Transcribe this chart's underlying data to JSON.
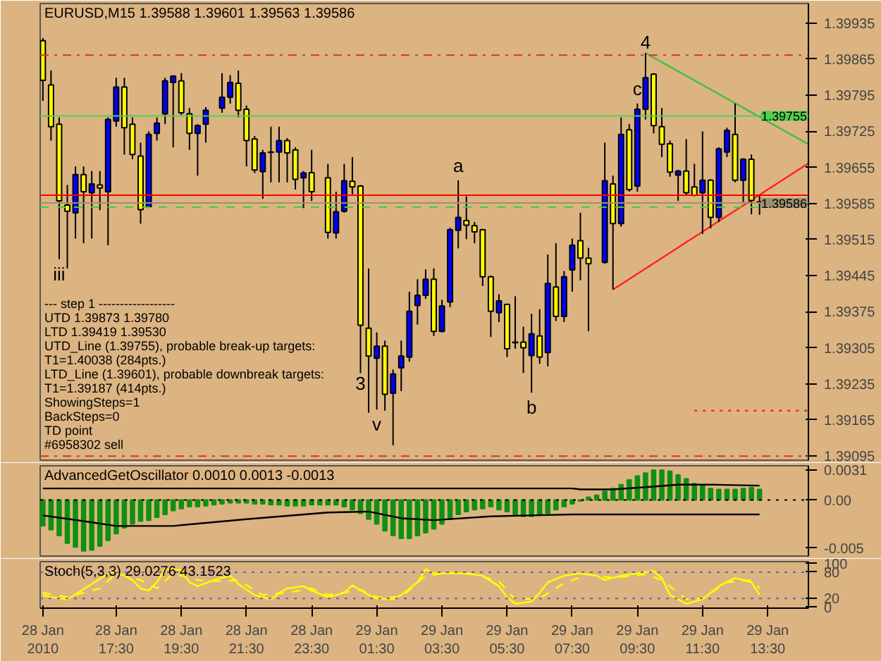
{
  "chart_data": [
    {
      "type": "candlestick",
      "title": "EURUSD,M15  1.39588 1.39601 1.39563 1.39586",
      "annotations": [
        "---   step 1   ------------------",
        "UTD 1.39873  1.39780",
        "LTD  1.39419  1.39530",
        "UTD_Line (1.39755), probable break-up targets:",
        "T1=1.40038 (284pts.)",
        "LTD_Line (1.39601), probable downbreak targets:",
        "T1=1.39187 (414pts.)",
        "ShowingSteps=1",
        "BackSteps=0",
        "TD point",
        "#6958302 sell",
        {
          "text": "iii",
          "x": "2010-01-28T15:45",
          "y": 1.39477
        },
        {
          "text": "3",
          "x": "2010-01-29T01:00",
          "y": 1.39256
        },
        {
          "text": "v",
          "x": "2010-01-29T01:30",
          "y": 1.39185
        },
        {
          "text": "a",
          "x": "2010-01-29T04:00",
          "y": 1.3963
        },
        {
          "text": "b",
          "x": "2010-01-29T06:15",
          "y": 1.39218
        },
        {
          "text": "c",
          "x": "2010-01-29T09:30",
          "y": 1.39779
        },
        {
          "text": "4",
          "x": "2010-01-29T09:45",
          "y": 1.39877
        }
      ],
      "x": [
        "2010-01-28T15:15",
        "2010-01-28T15:30",
        "2010-01-28T15:45",
        "2010-01-28T16:00",
        "2010-01-28T16:15",
        "2010-01-28T16:30",
        "2010-01-28T16:45",
        "2010-01-28T17:00",
        "2010-01-28T17:15",
        "2010-01-28T17:30",
        "2010-01-28T17:45",
        "2010-01-28T18:00",
        "2010-01-28T18:15",
        "2010-01-28T18:30",
        "2010-01-28T18:45",
        "2010-01-28T19:00",
        "2010-01-28T19:15",
        "2010-01-28T19:30",
        "2010-01-28T19:45",
        "2010-01-28T20:00",
        "2010-01-28T20:15",
        "2010-01-28T20:45",
        "2010-01-28T21:00",
        "2010-01-28T21:15",
        "2010-01-28T21:30",
        "2010-01-28T21:45",
        "2010-01-28T22:00",
        "2010-01-28T22:15",
        "2010-01-28T22:30",
        "2010-01-28T22:45",
        "2010-01-28T23:00",
        "2010-01-28T23:15",
        "2010-01-28T23:30",
        "2010-01-29T00:00",
        "2010-01-29T00:15",
        "2010-01-29T00:30",
        "2010-01-29T00:45",
        "2010-01-29T01:00",
        "2010-01-29T01:15",
        "2010-01-29T01:30",
        "2010-01-29T01:45",
        "2010-01-29T02:00",
        "2010-01-29T02:15",
        "2010-01-29T02:30",
        "2010-01-29T02:45",
        "2010-01-29T03:00",
        "2010-01-29T03:15",
        "2010-01-29T03:30",
        "2010-01-29T03:45",
        "2010-01-29T04:00",
        "2010-01-29T04:15",
        "2010-01-29T04:30",
        "2010-01-29T04:45",
        "2010-01-29T05:00",
        "2010-01-29T05:15",
        "2010-01-29T05:30",
        "2010-01-29T05:45",
        "2010-01-29T06:00",
        "2010-01-29T06:15",
        "2010-01-29T06:30",
        "2010-01-29T06:45",
        "2010-01-29T07:00",
        "2010-01-29T07:15",
        "2010-01-29T07:30",
        "2010-01-29T07:45",
        "2010-01-29T08:00",
        "2010-01-29T08:30",
        "2010-01-29T08:45",
        "2010-01-29T09:00",
        "2010-01-29T09:15",
        "2010-01-29T09:30",
        "2010-01-29T09:45",
        "2010-01-29T10:00",
        "2010-01-29T10:15",
        "2010-01-29T10:30",
        "2010-01-29T10:45",
        "2010-01-29T11:00",
        "2010-01-29T11:15",
        "2010-01-29T11:30",
        "2010-01-29T11:45",
        "2010-01-29T12:00",
        "2010-01-29T12:15",
        "2010-01-29T12:30",
        "2010-01-29T12:45",
        "2010-01-29T13:00",
        "2010-01-29T13:15"
      ],
      "ohlc": [
        [
          1.39901,
          1.39906,
          1.39784,
          1.39824
        ],
        [
          1.39815,
          1.39843,
          1.39707,
          1.39734
        ],
        [
          1.39739,
          1.39752,
          1.39477,
          1.3959
        ],
        [
          1.39582,
          1.39621,
          1.39459,
          1.3957
        ],
        [
          1.39567,
          1.39657,
          1.39517,
          1.39641
        ],
        [
          1.39641,
          1.39657,
          1.39508,
          1.39608
        ],
        [
          1.39606,
          1.39648,
          1.39517,
          1.39623
        ],
        [
          1.39621,
          1.39648,
          1.39572,
          1.39615
        ],
        [
          1.39608,
          1.39752,
          1.39504,
          1.39748
        ],
        [
          1.39745,
          1.39829,
          1.39734,
          1.39811
        ],
        [
          1.39811,
          1.39829,
          1.3968,
          1.39732
        ],
        [
          1.39739,
          1.39752,
          1.39671,
          1.3968
        ],
        [
          1.39677,
          1.39703,
          1.39546,
          1.39573
        ],
        [
          1.39579,
          1.39725,
          1.39576,
          1.39719
        ],
        [
          1.39721,
          1.39752,
          1.39707,
          1.39741
        ],
        [
          1.39759,
          1.39829,
          1.39739,
          1.39823
        ],
        [
          1.3982,
          1.39834,
          1.39694,
          1.39832
        ],
        [
          1.39823,
          1.39838,
          1.39757,
          1.39761
        ],
        [
          1.39759,
          1.3977,
          1.39689,
          1.39721
        ],
        [
          1.39721,
          1.39739,
          1.39639,
          1.39736
        ],
        [
          1.39739,
          1.39772,
          1.39703,
          1.39766
        ],
        [
          1.3977,
          1.39838,
          1.39761,
          1.39791
        ],
        [
          1.39791,
          1.39834,
          1.39779,
          1.3982
        ],
        [
          1.39818,
          1.39843,
          1.39752,
          1.39766
        ],
        [
          1.39768,
          1.39775,
          1.39657,
          1.39707
        ],
        [
          1.3971,
          1.39716,
          1.39644,
          1.3965
        ],
        [
          1.39647,
          1.39689,
          1.39594,
          1.39683
        ],
        [
          1.39685,
          1.39734,
          1.39626,
          1.39684
        ],
        [
          1.39685,
          1.39734,
          1.39626,
          1.39707
        ],
        [
          1.39707,
          1.39712,
          1.39626,
          1.39683
        ],
        [
          1.39689,
          1.39694,
          1.39612,
          1.39632
        ],
        [
          1.39635,
          1.39648,
          1.39576,
          1.39644
        ],
        [
          1.39645,
          1.39689,
          1.3959,
          1.39608
        ],
        [
          1.39635,
          1.39662,
          1.39517,
          1.39529
        ],
        [
          1.39528,
          1.39608,
          1.39517,
          1.39569
        ],
        [
          1.3957,
          1.39662,
          1.39567,
          1.39629
        ],
        [
          1.39628,
          1.39675,
          1.39603,
          1.39617
        ],
        [
          1.39619,
          1.39621,
          1.39256,
          1.39349
        ],
        [
          1.39343,
          1.39459,
          1.39179,
          1.39289
        ],
        [
          1.39285,
          1.39335,
          1.39185,
          1.39308
        ],
        [
          1.39308,
          1.39319,
          1.39183,
          1.39215
        ],
        [
          1.39217,
          1.39263,
          1.39116,
          1.39254
        ],
        [
          1.39266,
          1.39319,
          1.39221,
          1.39289
        ],
        [
          1.39287,
          1.39414,
          1.39278,
          1.39376
        ],
        [
          1.39387,
          1.39438,
          1.3935,
          1.39407
        ],
        [
          1.39407,
          1.39457,
          1.394,
          1.39438
        ],
        [
          1.39438,
          1.39459,
          1.39328,
          1.39337
        ],
        [
          1.39337,
          1.39398,
          1.39335,
          1.39386
        ],
        [
          1.39394,
          1.39538,
          1.39384,
          1.39534
        ],
        [
          1.39533,
          1.3963,
          1.39498,
          1.39558
        ],
        [
          1.39552,
          1.39599,
          1.39516,
          1.39543
        ],
        [
          1.39542,
          1.39549,
          1.39508,
          1.3953
        ],
        [
          1.39534,
          1.39536,
          1.39425,
          1.39443
        ],
        [
          1.39443,
          1.39445,
          1.39326,
          1.39376
        ],
        [
          1.39373,
          1.39409,
          1.39355,
          1.39396
        ],
        [
          1.39389,
          1.39391,
          1.39287,
          1.39303
        ],
        [
          1.39316,
          1.39405,
          1.39303,
          1.39315
        ],
        [
          1.39316,
          1.39346,
          1.39256,
          1.39305
        ],
        [
          1.3929,
          1.39371,
          1.39218,
          1.39332
        ],
        [
          1.39328,
          1.3938,
          1.39274,
          1.39287
        ],
        [
          1.39296,
          1.39486,
          1.39269,
          1.3943
        ],
        [
          1.39423,
          1.39508,
          1.39357,
          1.39366
        ],
        [
          1.39366,
          1.39454,
          1.39355,
          1.39443
        ],
        [
          1.39456,
          1.39517,
          1.39414,
          1.39504
        ],
        [
          1.39513,
          1.39567,
          1.39436,
          1.39479
        ],
        [
          1.39479,
          1.39499,
          1.39337,
          1.39468
        ],
        [
          1.39471,
          1.39703,
          1.39468,
          1.39629
        ],
        [
          1.39623,
          1.39639,
          1.39418,
          1.39546
        ],
        [
          1.39546,
          1.39752,
          1.3954,
          1.39719
        ],
        [
          1.39728,
          1.39739,
          1.39608,
          1.39612
        ],
        [
          1.39619,
          1.39779,
          1.39608,
          1.39768
        ],
        [
          1.39768,
          1.39877,
          1.39748,
          1.39829
        ],
        [
          1.39836,
          1.39838,
          1.39721,
          1.39736
        ],
        [
          1.39734,
          1.3977,
          1.39675,
          1.397
        ],
        [
          1.39701,
          1.39707,
          1.39637,
          1.39646
        ],
        [
          1.3964,
          1.3965,
          1.3959,
          1.39648
        ],
        [
          1.39648,
          1.3971,
          1.39601,
          1.39606
        ],
        [
          1.39617,
          1.39662,
          1.39599,
          1.39601
        ],
        [
          1.39606,
          1.39725,
          1.39526,
          1.3963
        ],
        [
          1.3963,
          1.39632,
          1.39537,
          1.39558
        ],
        [
          1.39558,
          1.39694,
          1.39549,
          1.39691
        ],
        [
          1.39685,
          1.39732,
          1.39675,
          1.39727
        ],
        [
          1.39719,
          1.39779,
          1.39626,
          1.3963
        ],
        [
          1.3963,
          1.39673,
          1.39588,
          1.39671
        ],
        [
          1.39671,
          1.3968,
          1.39564,
          1.39591
        ],
        [
          1.39588,
          1.39601,
          1.39563,
          1.39586
        ]
      ],
      "colors": [
        "#ffff00",
        "#ffff00",
        "#ffff00",
        "#ffff00",
        "#0000ff",
        "#ffff00",
        "#0000ff",
        "#ffff00",
        "#0000ff",
        "#0000ff",
        "#ffff00",
        "#ffff00",
        "#ffff00",
        "#0000ff",
        "#0000ff",
        "#0000ff",
        "#0000ff",
        "#ffff00",
        "#ffff00",
        "#0000ff",
        "#0000ff",
        "#0000ff",
        "#0000ff",
        "#ffff00",
        "#ffff00",
        "#ffff00",
        "#0000ff",
        "#ffff00",
        "#0000ff",
        "#ffff00",
        "#ffff00",
        "#0000ff",
        "#ffff00",
        "#ffff00",
        "#0000ff",
        "#0000ff",
        "#ffff00",
        "#ffff00",
        "#ffff00",
        "#0000ff",
        "#ffff00",
        "#0000ff",
        "#0000ff",
        "#0000ff",
        "#0000ff",
        "#0000ff",
        "#ffff00",
        "#0000ff",
        "#0000ff",
        "#0000ff",
        "#ffff00",
        "#ffff00",
        "#ffff00",
        "#ffff00",
        "#0000ff",
        "#ffff00",
        "#ffff00",
        "#ffff00",
        "#0000ff",
        "#ffff00",
        "#0000ff",
        "#ffff00",
        "#0000ff",
        "#0000ff",
        "#ffff00",
        "#ffff00",
        "#0000ff",
        "#ffff00",
        "#0000ff",
        "#ffff00",
        "#0000ff",
        "#0000ff",
        "#ffff00",
        "#ffff00",
        "#ffff00",
        "#0000ff",
        "#ffff00",
        "#ffff00",
        "#0000ff",
        "#ffff00",
        "#0000ff",
        "#0000ff",
        "#ffff00",
        "#0000ff",
        "#ffff00",
        "#ffff00"
      ],
      "series": [
        {
          "type": "line",
          "color": "#40c040",
          "line_style": "solid",
          "x": [
            "2010-01-29T09:45",
            "2010-01-29T14:45"
          ],
          "values": [
            1.39877,
            1.397
          ]
        },
        {
          "type": "line",
          "color": "#ff2020",
          "line_style": "solid",
          "x": [
            "2010-01-29T08:45",
            "2010-01-29T14:45"
          ],
          "values": [
            1.39418,
            1.39663
          ]
        },
        {
          "type": "line",
          "color": "#ff2020",
          "line_style": "dotted",
          "x": [
            "2010-01-29T11:15",
            "2010-01-29T14:45"
          ],
          "values": [
            1.39183,
            1.39183
          ]
        }
      ],
      "ref_lines": [
        {
          "axis": "y",
          "value": 1.39873,
          "label": null,
          "color": "#e03020",
          "line_style": "dashdot"
        },
        {
          "axis": "y",
          "value": 1.39095,
          "label": null,
          "color": "#e03020",
          "line_style": "dashdot"
        },
        {
          "axis": "y",
          "value": 1.39755,
          "label": "1.39755",
          "color": "#50d050",
          "line_style": "solid"
        },
        {
          "axis": "y",
          "value": 1.39586,
          "label": "1.39586",
          "color": "#a09070",
          "line_style": "solid"
        },
        {
          "axis": "y",
          "value": 1.39601,
          "label": null,
          "color": "#ff0000",
          "line_style": "solid"
        },
        {
          "axis": "y",
          "value": 1.39578,
          "label": null,
          "color": "#40d040",
          "line_style": "dashed"
        }
      ],
      "xlim": [
        "2010-01-28T15:10",
        "2010-01-29T14:45"
      ],
      "ylim": [
        1.39087,
        1.39973
      ],
      "yticks": [
        1.39935,
        1.39865,
        1.39795,
        1.39725,
        1.39655,
        1.39585,
        1.39515,
        1.39445,
        1.39375,
        1.39305,
        1.39235,
        1.39165,
        1.39095
      ],
      "tick_labels": "y"
    },
    {
      "type": "bar",
      "title": "AdvancedGetOscillator 0.0010 0.0013 -0.0013",
      "x": [
        "2010-01-28T15:15",
        "2010-01-28T15:30",
        "2010-01-28T15:45",
        "2010-01-28T16:00",
        "2010-01-28T16:15",
        "2010-01-28T16:30",
        "2010-01-28T16:45",
        "2010-01-28T17:00",
        "2010-01-28T17:15",
        "2010-01-28T17:30",
        "2010-01-28T17:45",
        "2010-01-28T18:00",
        "2010-01-28T18:15",
        "2010-01-28T18:30",
        "2010-01-28T18:45",
        "2010-01-28T19:00",
        "2010-01-28T19:15",
        "2010-01-28T19:30",
        "2010-01-28T19:45",
        "2010-01-28T20:00",
        "2010-01-28T20:15",
        "2010-01-28T20:30",
        "2010-01-28T20:45",
        "2010-01-28T21:00",
        "2010-01-28T21:15",
        "2010-01-28T21:30",
        "2010-01-28T21:45",
        "2010-01-28T22:00",
        "2010-01-28T22:15",
        "2010-01-28T22:30",
        "2010-01-28T22:45",
        "2010-01-28T23:00",
        "2010-01-28T23:15",
        "2010-01-28T23:30",
        "2010-01-28T23:45",
        "2010-01-29T00:00",
        "2010-01-29T00:15",
        "2010-01-29T00:30",
        "2010-01-29T00:45",
        "2010-01-29T01:00",
        "2010-01-29T01:15",
        "2010-01-29T01:30",
        "2010-01-29T01:45",
        "2010-01-29T02:00",
        "2010-01-29T02:15",
        "2010-01-29T02:30",
        "2010-01-29T02:45",
        "2010-01-29T03:00",
        "2010-01-29T03:15",
        "2010-01-29T03:30",
        "2010-01-29T03:45",
        "2010-01-29T04:00",
        "2010-01-29T04:15",
        "2010-01-29T04:30",
        "2010-01-29T04:45",
        "2010-01-29T05:00",
        "2010-01-29T05:15",
        "2010-01-29T05:30",
        "2010-01-29T05:45",
        "2010-01-29T06:00",
        "2010-01-29T06:15",
        "2010-01-29T06:30",
        "2010-01-29T06:45",
        "2010-01-29T07:00",
        "2010-01-29T07:15",
        "2010-01-29T07:30",
        "2010-01-29T07:45",
        "2010-01-29T08:00",
        "2010-01-29T08:15",
        "2010-01-29T08:30",
        "2010-01-29T08:45",
        "2010-01-29T09:00",
        "2010-01-29T09:15",
        "2010-01-29T09:30",
        "2010-01-29T09:45",
        "2010-01-29T10:00",
        "2010-01-29T10:15",
        "2010-01-29T10:30",
        "2010-01-29T10:45",
        "2010-01-29T11:00",
        "2010-01-29T11:15",
        "2010-01-29T11:30",
        "2010-01-29T11:45",
        "2010-01-29T12:00",
        "2010-01-29T12:15",
        "2010-01-29T12:30",
        "2010-01-29T12:45",
        "2010-01-29T13:00",
        "2010-01-29T13:15"
      ],
      "series": [
        {
          "type": "bar",
          "color": "#109010",
          "values": [
            -0.0027,
            -0.0031,
            -0.0037,
            -0.0045,
            -0.0049,
            -0.0053,
            -0.0052,
            -0.0048,
            -0.0042,
            -0.0035,
            -0.0029,
            -0.0025,
            -0.0022,
            -0.0021,
            -0.0018,
            -0.0015,
            -0.0011,
            -0.0009,
            -0.0007,
            -0.0007,
            -0.0006,
            -0.0005,
            -0.0004,
            -0.0003,
            -0.0003,
            -0.0003,
            -0.0004,
            -0.0004,
            -0.0005,
            -0.0005,
            -0.0006,
            -0.0006,
            -0.0006,
            -0.0005,
            -0.0005,
            -0.0005,
            -0.0005,
            -0.0007,
            -0.001,
            -0.0014,
            -0.002,
            -0.0025,
            -0.0032,
            -0.0037,
            -0.004,
            -0.004,
            -0.0037,
            -0.0034,
            -0.003,
            -0.0025,
            -0.002,
            -0.0015,
            -0.0012,
            -0.001,
            -0.0009,
            -0.0007,
            -0.001,
            -0.0012,
            -0.0015,
            -0.0017,
            -0.0017,
            -0.0016,
            -0.0014,
            -0.001,
            -0.0007,
            -0.0004,
            -0.0001,
            0.0003,
            0.0005,
            0.0009,
            0.0012,
            0.0016,
            0.0021,
            0.0025,
            0.0028,
            0.0031,
            0.0031,
            0.003,
            0.0026,
            0.0022,
            0.0017,
            0.0015,
            0.0012,
            0.0011,
            0.0011,
            0.0011,
            0.0012,
            0.0013,
            0.0011
          ]
        },
        {
          "type": "line",
          "color": "#000000",
          "x": [
            "2010-01-28T15:15",
            "2010-01-29T07:30",
            "2010-01-29T07:45",
            "2010-01-29T08:45",
            "2010-01-29T10:00",
            "2010-01-29T10:45",
            "2010-01-29T11:45",
            "2010-01-29T13:15"
          ],
          "values": [
            0.0012,
            0.0012,
            0.0011,
            0.0011,
            0.0014,
            0.0016,
            0.0016,
            0.0015
          ]
        },
        {
          "type": "line",
          "color": "#000000",
          "x": [
            "2010-01-28T15:15",
            "2010-01-28T16:30",
            "2010-01-28T17:30",
            "2010-01-28T19:15",
            "2010-01-28T21:30",
            "2010-01-29T00:00",
            "2010-01-29T01:15",
            "2010-01-29T02:15",
            "2010-01-29T03:15",
            "2010-01-29T05:00",
            "2010-01-29T06:15",
            "2010-01-29T07:30",
            "2010-01-29T13:15"
          ],
          "values": [
            -0.0016,
            -0.0022,
            -0.0027,
            -0.0027,
            -0.002,
            -0.0013,
            -0.0012,
            -0.0019,
            -0.0021,
            -0.0017,
            -0.0016,
            -0.0015,
            -0.0015
          ]
        }
      ],
      "ref_lines": [
        {
          "axis": "y",
          "value": 0,
          "label": null,
          "color": "#000000",
          "line_style": "dotted"
        }
      ],
      "xlim": [
        "2010-01-28T15:10",
        "2010-01-29T14:45"
      ],
      "ylim": [
        -0.00583,
        0.00356
      ],
      "yticks": [
        0.0031,
        {
          "value": 0,
          "label": "0.00"
        },
        -0.005
      ],
      "tick_labels": "y"
    },
    {
      "type": "line",
      "title": "Stoch(5,3,3) 29.0276 43.1523",
      "series": [
        {
          "color": "#ffff00",
          "line_style": "solid",
          "x": [
            "2010-01-28T15:15",
            "2010-01-28T15:30",
            "2010-01-28T16:00",
            "2010-01-28T16:45",
            "2010-01-28T17:15",
            "2010-01-28T17:30",
            "2010-01-28T18:00",
            "2010-01-28T18:15",
            "2010-01-28T18:30",
            "2010-01-28T18:45",
            "2010-01-28T19:00",
            "2010-01-28T19:30",
            "2010-01-28T19:45",
            "2010-01-28T20:00",
            "2010-01-28T20:30",
            "2010-01-28T21:00",
            "2010-01-28T21:15",
            "2010-01-28T21:45",
            "2010-01-28T22:15",
            "2010-01-28T22:30",
            "2010-01-28T22:45",
            "2010-01-28T23:15",
            "2010-01-28T23:30",
            "2010-01-29T00:00",
            "2010-01-29T00:15",
            "2010-01-29T00:30",
            "2010-01-29T00:45",
            "2010-01-29T01:15",
            "2010-01-29T01:30",
            "2010-01-29T02:00",
            "2010-01-29T02:15",
            "2010-01-29T02:45",
            "2010-01-29T03:00",
            "2010-01-29T03:15",
            "2010-01-29T03:45",
            "2010-01-29T04:15",
            "2010-01-29T04:45",
            "2010-01-29T05:15",
            "2010-01-29T05:30",
            "2010-01-29T05:45",
            "2010-01-29T06:15",
            "2010-01-29T06:30",
            "2010-01-29T06:45",
            "2010-01-29T07:15",
            "2010-01-29T07:45",
            "2010-01-29T08:15",
            "2010-01-29T08:30",
            "2010-01-29T09:00",
            "2010-01-29T09:30",
            "2010-01-29T10:00",
            "2010-01-29T10:15",
            "2010-01-29T10:30",
            "2010-01-29T11:00",
            "2010-01-29T11:30",
            "2010-01-29T12:00",
            "2010-01-29T12:30",
            "2010-01-29T13:00",
            "2010-01-29T13:15"
          ],
          "values": [
            28,
            23,
            18,
            53,
            77,
            82,
            62,
            43,
            38,
            57,
            87,
            85,
            57,
            48,
            62,
            72,
            53,
            28,
            18,
            33,
            43,
            48,
            38,
            23,
            28,
            33,
            50,
            28,
            20,
            18,
            28,
            57,
            87,
            77,
            77,
            77,
            72,
            48,
            23,
            8,
            13,
            33,
            57,
            72,
            77,
            72,
            62,
            72,
            77,
            82,
            67,
            28,
            8,
            18,
            48,
            67,
            57,
            28
          ]
        },
        {
          "color": "#ffff00",
          "line_style": "dashed",
          "x": [
            "2010-01-28T15:15",
            "2010-01-28T16:00",
            "2010-01-28T17:00",
            "2010-01-28T17:30",
            "2010-01-28T18:15",
            "2010-01-28T18:45",
            "2010-01-28T19:15",
            "2010-01-28T20:00",
            "2010-01-28T20:45",
            "2010-01-28T21:15",
            "2010-01-28T22:00",
            "2010-01-28T22:45",
            "2010-01-28T23:30",
            "2010-01-29T00:00",
            "2010-01-29T01:00",
            "2010-01-29T01:30",
            "2010-01-29T02:15",
            "2010-01-29T03:00",
            "2010-01-29T03:45",
            "2010-01-29T04:30",
            "2010-01-29T05:15",
            "2010-01-29T05:45",
            "2010-01-29T06:30",
            "2010-01-29T07:15",
            "2010-01-29T08:00",
            "2010-01-29T08:45",
            "2010-01-29T09:45",
            "2010-01-29T10:15",
            "2010-01-29T11:00",
            "2010-01-29T11:30",
            "2010-01-29T12:15",
            "2010-01-29T13:00",
            "2010-01-29T13:15"
          ],
          "values": [
            33,
            23,
            43,
            77,
            62,
            43,
            77,
            62,
            59,
            62,
            28,
            33,
            43,
            28,
            40,
            23,
            23,
            72,
            79,
            75,
            59,
            18,
            20,
            55,
            75,
            67,
            75,
            62,
            18,
            20,
            57,
            62,
            43
          ]
        }
      ],
      "ref_lines": [
        {
          "axis": "y",
          "value": 80,
          "label": null,
          "color": "#6060c0",
          "line_style": "dotted"
        },
        {
          "axis": "y",
          "value": 20,
          "label": null,
          "color": "#6060c0",
          "line_style": "dotted"
        }
      ],
      "xlim": [
        "2010-01-28T15:10",
        "2010-01-29T14:45"
      ],
      "ylim": [
        -2,
        104
      ],
      "yticks": [
        100,
        80,
        20,
        0
      ],
      "xticks": [
        {
          "value": "2010-01-28T15:15",
          "label": "28 Jan 2010"
        },
        {
          "value": "2010-01-28T17:30",
          "label": "28 Jan 17:30"
        },
        {
          "value": "2010-01-28T19:30",
          "label": "28 Jan 19:30"
        },
        {
          "value": "2010-01-28T21:30",
          "label": "28 Jan 21:30"
        },
        {
          "value": "2010-01-28T23:30",
          "label": "28 Jan 23:30"
        },
        {
          "value": "2010-01-29T01:30",
          "label": "29 Jan 01:30"
        },
        {
          "value": "2010-01-29T03:30",
          "label": "29 Jan 03:30"
        },
        {
          "value": "2010-01-29T05:30",
          "label": "29 Jan 05:30"
        },
        {
          "value": "2010-01-29T07:30",
          "label": "29 Jan 07:30"
        },
        {
          "value": "2010-01-29T09:30",
          "label": "29 Jan 09:30"
        },
        {
          "value": "2010-01-29T11:30",
          "label": "29 Jan 11:30"
        },
        {
          "value": "2010-01-29T13:30",
          "label": "29 Jan 13:30"
        }
      ]
    }
  ]
}
